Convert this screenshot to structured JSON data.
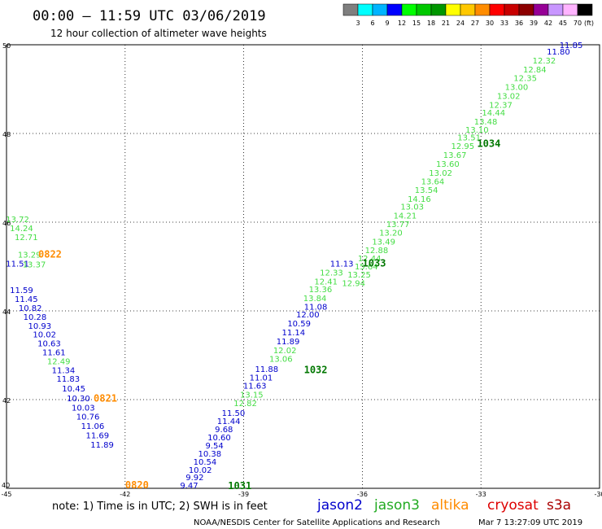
{
  "header": {
    "title": "00:00 – 11:59 UTC 03/06/2019",
    "subtitle": "12 hour collection of altimeter wave heights"
  },
  "colorbar": {
    "labels": [
      "3",
      "6",
      "9",
      "12",
      "15",
      "18",
      "21",
      "24",
      "27",
      "30",
      "33",
      "36",
      "39",
      "42",
      "45",
      "70"
    ],
    "unit": "(ft)",
    "colors": [
      "#7f7f7f",
      "#00ffff",
      "#00b4ff",
      "#0000ff",
      "#00ff00",
      "#00c800",
      "#009600",
      "#ffff00",
      "#ffc800",
      "#ff8c00",
      "#ff0000",
      "#c80000",
      "#8c0000",
      "#960096",
      "#c896ff",
      "#ffb4ff",
      "#000000"
    ]
  },
  "footer": {
    "note": "note: 1) Time is in UTC; 2) SWH is in feet",
    "credit": "NOAA/NESDIS Center for Satellite Applications and Research",
    "timestamp": "Mar  7 13:27:09 UTC 2019",
    "missions": [
      {
        "name": "jason2",
        "color": "#0000cc"
      },
      {
        "name": "jason3",
        "color": "#22aa22"
      },
      {
        "name": "altika",
        "color": "#ff8c00"
      },
      {
        "name": "cryosat",
        "color": "#dd0000"
      },
      {
        "name": "s3a",
        "color": "#aa0000"
      }
    ]
  },
  "chart_data": {
    "type": "scatter",
    "title": "00:00 – 11:59 UTC 03/06/2019",
    "subtitle": "12 hour collection of altimeter wave heights",
    "xlim": [
      -45,
      -30
    ],
    "ylim": [
      40,
      50
    ],
    "xticks": [
      -45,
      -42,
      -39,
      -36,
      -33,
      -30
    ],
    "xtick_labels": [
      "-45",
      "-42",
      "-39",
      "-36",
      "-33",
      "-30"
    ],
    "yticks": [
      40,
      42,
      44,
      46,
      48,
      50
    ],
    "ytick_labels": [
      "40",
      "42",
      "44",
      "46",
      "48",
      "50"
    ],
    "grid": true,
    "legend_placement": "bottom",
    "series": [
      {
        "name": "jason2",
        "color": "#0000cc",
        "points": [
          {
            "x": -30.72,
            "y": 49.93,
            "v": "11.85"
          },
          {
            "x": -31.04,
            "y": 49.78,
            "v": "11.80"
          },
          {
            "x": -36.52,
            "y": 45.0,
            "v": "11.13"
          },
          {
            "x": -37.18,
            "y": 44.03,
            "v": "11.08"
          },
          {
            "x": -37.38,
            "y": 43.85,
            "v": "12.00"
          },
          {
            "x": -37.6,
            "y": 43.65,
            "v": "10.59"
          },
          {
            "x": -37.74,
            "y": 43.45,
            "v": "11.14"
          },
          {
            "x": -37.88,
            "y": 43.25,
            "v": "11.89"
          },
          {
            "x": -38.42,
            "y": 42.62,
            "v": "11.88"
          },
          {
            "x": -38.56,
            "y": 42.43,
            "v": "11.01"
          },
          {
            "x": -38.72,
            "y": 42.25,
            "v": "11.63"
          },
          {
            "x": -39.26,
            "y": 41.63,
            "v": "11.50"
          },
          {
            "x": -39.38,
            "y": 41.45,
            "v": "11.44"
          },
          {
            "x": -39.5,
            "y": 41.27,
            "v": "9.68"
          },
          {
            "x": -39.62,
            "y": 41.08,
            "v": "10.60"
          },
          {
            "x": -39.74,
            "y": 40.9,
            "v": "9.54"
          },
          {
            "x": -39.86,
            "y": 40.72,
            "v": "10.38"
          },
          {
            "x": -39.98,
            "y": 40.53,
            "v": "10.54"
          },
          {
            "x": -40.1,
            "y": 40.35,
            "v": "10.02"
          },
          {
            "x": -40.24,
            "y": 40.18,
            "v": "9.92"
          },
          {
            "x": -40.38,
            "y": 40.0,
            "v": "9.47"
          },
          {
            "x": -44.72,
            "y": 45.0,
            "v": "11.51"
          },
          {
            "x": -44.62,
            "y": 44.4,
            "v": "11.59"
          },
          {
            "x": -44.5,
            "y": 44.2,
            "v": "11.45"
          },
          {
            "x": -44.4,
            "y": 44.0,
            "v": "10.82"
          },
          {
            "x": -44.28,
            "y": 43.8,
            "v": "10.28"
          },
          {
            "x": -44.16,
            "y": 43.6,
            "v": "10.93"
          },
          {
            "x": -44.04,
            "y": 43.4,
            "v": "10.02"
          },
          {
            "x": -43.92,
            "y": 43.2,
            "v": "10.63"
          },
          {
            "x": -43.8,
            "y": 43.0,
            "v": "11.61"
          },
          {
            "x": -43.56,
            "y": 42.6,
            "v": "11.34"
          },
          {
            "x": -43.44,
            "y": 42.4,
            "v": "11.83"
          },
          {
            "x": -43.3,
            "y": 42.18,
            "v": "10.45"
          },
          {
            "x": -43.18,
            "y": 41.96,
            "v": "10.30"
          },
          {
            "x": -43.06,
            "y": 41.75,
            "v": "10.03"
          },
          {
            "x": -42.94,
            "y": 41.55,
            "v": "10.76"
          },
          {
            "x": -42.82,
            "y": 41.34,
            "v": "11.06"
          },
          {
            "x": -42.7,
            "y": 41.13,
            "v": "11.69"
          },
          {
            "x": -42.58,
            "y": 40.92,
            "v": "11.89"
          }
        ]
      },
      {
        "name": "jason3",
        "color": "#44dd44",
        "points": [
          {
            "x": -31.4,
            "y": 49.58,
            "v": "12.32"
          },
          {
            "x": -31.64,
            "y": 49.38,
            "v": "12.84"
          },
          {
            "x": -31.88,
            "y": 49.18,
            "v": "12.35"
          },
          {
            "x": -32.1,
            "y": 48.98,
            "v": "13.00"
          },
          {
            "x": -32.3,
            "y": 48.78,
            "v": "13.02"
          },
          {
            "x": -32.5,
            "y": 48.58,
            "v": "12.37"
          },
          {
            "x": -32.68,
            "y": 48.4,
            "v": "14.44"
          },
          {
            "x": -32.88,
            "y": 48.2,
            "v": "13.48"
          },
          {
            "x": -33.1,
            "y": 48.02,
            "v": "13.10"
          },
          {
            "x": -33.3,
            "y": 47.84,
            "v": "13.51"
          },
          {
            "x": -33.46,
            "y": 47.65,
            "v": "12.95"
          },
          {
            "x": -33.66,
            "y": 47.45,
            "v": "13.67"
          },
          {
            "x": -33.84,
            "y": 47.25,
            "v": "13.60"
          },
          {
            "x": -34.02,
            "y": 47.05,
            "v": "13.02"
          },
          {
            "x": -34.22,
            "y": 46.85,
            "v": "13.64"
          },
          {
            "x": -34.38,
            "y": 46.66,
            "v": "13.54"
          },
          {
            "x": -34.56,
            "y": 46.46,
            "v": "14.16"
          },
          {
            "x": -34.74,
            "y": 46.28,
            "v": "13.03"
          },
          {
            "x": -34.92,
            "y": 46.08,
            "v": "14.21"
          },
          {
            "x": -35.1,
            "y": 45.89,
            "v": "13.77"
          },
          {
            "x": -35.28,
            "y": 45.7,
            "v": "13.20"
          },
          {
            "x": -35.46,
            "y": 45.5,
            "v": "13.49"
          },
          {
            "x": -35.64,
            "y": 45.3,
            "v": "12.88"
          },
          {
            "x": -35.82,
            "y": 45.12,
            "v": "12.44"
          },
          {
            "x": -35.9,
            "y": 44.94,
            "v": "15.64"
          },
          {
            "x": -36.08,
            "y": 44.75,
            "v": "13.25"
          },
          {
            "x": -36.22,
            "y": 44.56,
            "v": "12.94"
          },
          {
            "x": -36.78,
            "y": 44.8,
            "v": "12.33"
          },
          {
            "x": -36.92,
            "y": 44.6,
            "v": "12.41"
          },
          {
            "x": -37.06,
            "y": 44.42,
            "v": "13.36"
          },
          {
            "x": -37.2,
            "y": 44.22,
            "v": "13.84"
          },
          {
            "x": -37.96,
            "y": 43.05,
            "v": "12.02"
          },
          {
            "x": -38.06,
            "y": 42.85,
            "v": "13.06"
          },
          {
            "x": -38.8,
            "y": 42.05,
            "v": "13.15"
          },
          {
            "x": -38.96,
            "y": 41.85,
            "v": "12.82"
          },
          {
            "x": -44.72,
            "y": 46.0,
            "v": "13.72"
          },
          {
            "x": -44.62,
            "y": 45.8,
            "v": "14.24"
          },
          {
            "x": -44.5,
            "y": 45.6,
            "v": "12.71"
          },
          {
            "x": -44.42,
            "y": 45.2,
            "v": "13.29"
          },
          {
            "x": -44.3,
            "y": 44.98,
            "v": "13.37"
          },
          {
            "x": -43.68,
            "y": 42.8,
            "v": "12.49"
          }
        ]
      },
      {
        "name": "altika",
        "color": "#ff8c00",
        "points": []
      }
    ],
    "pass_ids": [
      {
        "label": "1034",
        "x": -32.8,
        "y": 47.7,
        "color": "#007700"
      },
      {
        "label": "1033",
        "x": -35.7,
        "y": 45.0,
        "color": "#007700"
      },
      {
        "label": "1032",
        "x": -37.18,
        "y": 42.6,
        "color": "#007700"
      },
      {
        "label": "1031",
        "x": -39.1,
        "y": 39.98,
        "color": "#007700"
      },
      {
        "label": "0822",
        "x": -43.9,
        "y": 45.2,
        "color": "#ff8c00"
      },
      {
        "label": "0821",
        "x": -42.5,
        "y": 41.95,
        "color": "#ff8c00"
      },
      {
        "label": "0820",
        "x": -41.7,
        "y": 40.0,
        "color": "#ff8c00"
      }
    ]
  }
}
